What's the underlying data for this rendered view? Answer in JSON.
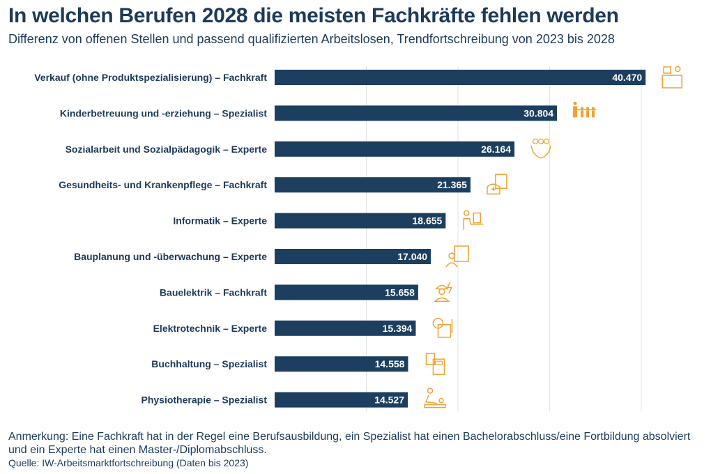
{
  "chart_data": {
    "type": "bar",
    "orientation": "horizontal",
    "title": "In welchen Berufen 2028 die meisten Fachkräfte fehlen werden",
    "subtitle": "Differenz von offenen Stellen und passend qualifizierten Arbeitslosen, Trendfortschreibung von 2023 bis 2028",
    "categories": [
      "Verkauf (ohne Produktspezialisierung) – Fachkraft",
      "Kinderbetreuung und -erziehung – Spezialist",
      "Sozialarbeit und Sozialpädagogik – Experte",
      "Gesundheits- und Krankenpflege – Fachkraft",
      "Informatik – Experte",
      "Bauplanung und -überwachung – Experte",
      "Bauelektrik – Fachkraft",
      "Elektrotechnik – Experte",
      "Buchhaltung – Spezialist",
      "Physiotherapie – Spezialist"
    ],
    "values": [
      40470,
      30804,
      26164,
      21365,
      18655,
      17040,
      15658,
      15394,
      14558,
      14527
    ],
    "data_labels": [
      "40.470",
      "30.804",
      "26.164",
      "21.365",
      "18.655",
      "17.040",
      "15.658",
      "15.394",
      "14.558",
      "14.527"
    ],
    "icons": [
      "cashier-icon",
      "family-icon",
      "caring-hands-icon",
      "nurse-icon",
      "computer-worker-icon",
      "architect-icon",
      "electrician-icon",
      "electronics-icon",
      "calculator-icon",
      "physiotherapy-icon"
    ],
    "xlim": [
      0,
      40000
    ],
    "grid": true,
    "xlabel": "",
    "ylabel": "",
    "colors": {
      "bar": "#1c3f60",
      "icon": "#f0a232",
      "grid": "#dfe3e8",
      "label": "#1c3a5a"
    }
  },
  "note": "Anmerkung: Eine Fachkraft hat in der Regel eine Berufsausbildung, ein Spezialist hat einen Bachelorabschluss/eine Fortbildung absolviert und ein Experte hat einen Master-/Diplomabschluss.",
  "source": "Quelle: IW-Arbeitsmarktfortschreibung (Daten bis 2023)"
}
